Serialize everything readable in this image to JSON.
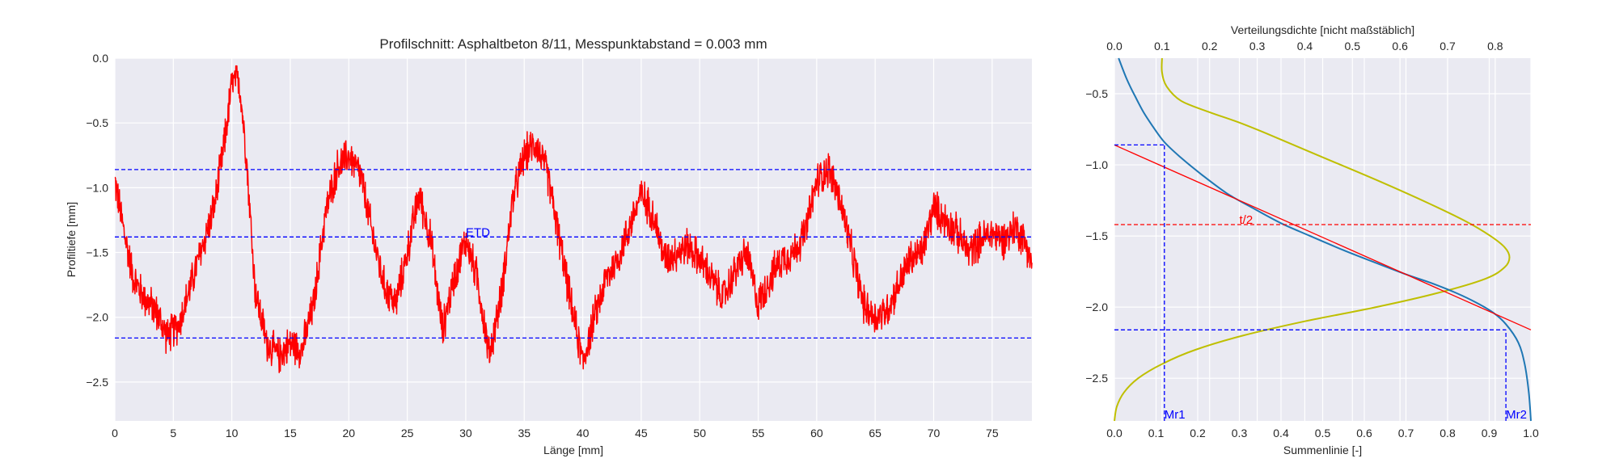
{
  "colors": {
    "axes_bg": "#eaeaf2",
    "grid": "#ffffff",
    "profile": "#ff0000",
    "levels": "#0000ff",
    "cumulative": "#1f77b4",
    "density": "#bfbf00",
    "fit_line": "#ff0000"
  },
  "chart_data": [
    {
      "type": "line",
      "title": "Profilschnitt: Asphaltbeton 8/11, Messpunktabstand = 0.003 mm",
      "xlabel": "Länge [mm]",
      "ylabel": "Profiltiefe [mm]",
      "xlim": [
        0,
        78.4
      ],
      "ylim": [
        -2.8,
        0.0
      ],
      "xticks": [
        0,
        5,
        10,
        15,
        20,
        25,
        30,
        35,
        40,
        45,
        50,
        55,
        60,
        65,
        70,
        75
      ],
      "yticks": [
        0.0,
        -0.5,
        -1.0,
        -1.5,
        -2.0,
        -2.5
      ],
      "grid": true,
      "series": [
        {
          "x": [
            0,
            0.8,
            1.6,
            2.5,
            3.5,
            4.5,
            5.5,
            6.5,
            7.5,
            8.5,
            9.3,
            10.0,
            10.6,
            11.2,
            12.0,
            13.0,
            14.0,
            15.0,
            16.0,
            17.0,
            18.0,
            19.0,
            20.0,
            21.0,
            22.0,
            23.0,
            24.0,
            25.0,
            26.0,
            27.0,
            28.0,
            29.0,
            30.0,
            31.0,
            32.0,
            33.0,
            34.0,
            35.0,
            36.0,
            37.0,
            38.0,
            39.0,
            40.0,
            41.0,
            42.0,
            43.0,
            44.0,
            45.0,
            46.0,
            47.0,
            48.0,
            49.0,
            50.0,
            51.0,
            52.0,
            53.0,
            54.0,
            55.0,
            56.0,
            57.0,
            58.0,
            59.0,
            60.0,
            61.0,
            62.0,
            63.0,
            64.0,
            65.0,
            66.0,
            67.0,
            68.0,
            69.0,
            70.0,
            71.0,
            72.0,
            73.0,
            74.0,
            75.0,
            76.0,
            77.0,
            78.0,
            78.4
          ],
          "values": [
            -0.95,
            -1.35,
            -1.7,
            -1.85,
            -1.95,
            -2.15,
            -2.05,
            -1.75,
            -1.45,
            -1.15,
            -0.7,
            -0.2,
            -0.15,
            -0.7,
            -1.8,
            -2.2,
            -2.3,
            -2.2,
            -2.25,
            -1.9,
            -1.2,
            -0.85,
            -0.75,
            -0.9,
            -1.35,
            -1.75,
            -1.9,
            -1.5,
            -1.05,
            -1.4,
            -2.1,
            -1.7,
            -1.4,
            -1.7,
            -2.3,
            -1.85,
            -1.1,
            -0.75,
            -0.65,
            -0.9,
            -1.4,
            -1.9,
            -2.35,
            -2.0,
            -1.7,
            -1.55,
            -1.3,
            -1.05,
            -1.2,
            -1.55,
            -1.5,
            -1.45,
            -1.55,
            -1.7,
            -1.85,
            -1.65,
            -1.5,
            -1.9,
            -1.7,
            -1.55,
            -1.5,
            -1.35,
            -0.95,
            -0.85,
            -1.1,
            -1.5,
            -1.9,
            -2.0,
            -1.95,
            -1.75,
            -1.55,
            -1.5,
            -1.15,
            -1.25,
            -1.35,
            -1.5,
            -1.4,
            -1.35,
            -1.4,
            -1.3,
            -1.45,
            -1.6
          ],
          "noise_amplitude": 0.17
        }
      ],
      "reference_lines": [
        {
          "y": -0.86
        },
        {
          "y": -1.38,
          "label": "ETD"
        },
        {
          "y": -2.16
        }
      ],
      "annotations": [
        {
          "text": "ETD",
          "x": 30.0,
          "y": -1.38
        }
      ]
    },
    {
      "type": "line",
      "xlabel": "Summenlinie [-]",
      "x2label": "Verteilungsdichte [nicht maßstäblich]",
      "xlim": [
        0.0,
        1.0
      ],
      "x2lim": [
        0.0,
        0.875
      ],
      "ylim": [
        -2.8,
        -0.25
      ],
      "xticks": [
        0.0,
        0.1,
        0.2,
        0.3,
        0.4,
        0.5,
        0.6,
        0.7,
        0.8,
        0.9,
        1.0
      ],
      "x2ticks": [
        0.0,
        0.1,
        0.2,
        0.3,
        0.4,
        0.5,
        0.6,
        0.7,
        0.8
      ],
      "yticks": [
        -0.5,
        -1.0,
        -1.5,
        -2.0,
        -2.5
      ],
      "grid": true,
      "series": [
        {
          "role": "cumulative",
          "x": [
            0.01,
            0.03,
            0.05,
            0.07,
            0.09,
            0.12,
            0.16,
            0.21,
            0.27,
            0.33,
            0.4,
            0.47,
            0.55,
            0.62,
            0.7,
            0.76,
            0.82,
            0.87,
            0.91,
            0.94,
            0.97,
            0.985,
            0.995,
            1.0
          ],
          "y": [
            -0.25,
            -0.4,
            -0.52,
            -0.63,
            -0.72,
            -0.84,
            -0.95,
            -1.07,
            -1.2,
            -1.3,
            -1.41,
            -1.5,
            -1.6,
            -1.68,
            -1.77,
            -1.83,
            -1.9,
            -1.97,
            -2.04,
            -2.12,
            -2.25,
            -2.4,
            -2.6,
            -2.8
          ]
        },
        {
          "role": "density",
          "x": [
            0.1,
            0.1,
            0.11,
            0.14,
            0.2,
            0.26,
            0.32,
            0.44,
            0.56,
            0.66,
            0.74,
            0.79,
            0.82,
            0.83,
            0.82,
            0.78,
            0.68,
            0.55,
            0.4,
            0.27,
            0.17,
            0.1,
            0.05,
            0.02,
            0.005,
            0.0
          ],
          "y": [
            -0.25,
            -0.35,
            -0.45,
            -0.55,
            -0.63,
            -0.7,
            -0.78,
            -0.95,
            -1.12,
            -1.27,
            -1.4,
            -1.5,
            -1.58,
            -1.65,
            -1.72,
            -1.8,
            -1.9,
            -2.0,
            -2.1,
            -2.2,
            -2.3,
            -2.4,
            -2.5,
            -2.6,
            -2.7,
            -2.8
          ]
        }
      ],
      "fit_line": {
        "x": [
          0.0,
          1.0
        ],
        "y": [
          -0.86,
          -2.16
        ]
      },
      "reference_lines": [
        {
          "y": -0.86,
          "x_from": 0.0,
          "x_to": 0.12
        },
        {
          "y": -2.16,
          "x_from": 0.0,
          "x_to": 0.94
        },
        {
          "y": -1.42,
          "full": true,
          "label": "t/2"
        },
        {
          "x": 0.12,
          "y_from": -2.8,
          "y_to": -0.86,
          "label": "Mr1"
        },
        {
          "x": 0.94,
          "y_from": -2.8,
          "y_to": -2.16,
          "label": "Mr2"
        }
      ],
      "annotations": [
        {
          "text": "t/2",
          "x": 0.3,
          "y": -1.42
        },
        {
          "text": "Mr1",
          "x": 0.12,
          "y": -2.8
        },
        {
          "text": "Mr2",
          "x": 0.94,
          "y": -2.8
        }
      ]
    }
  ]
}
